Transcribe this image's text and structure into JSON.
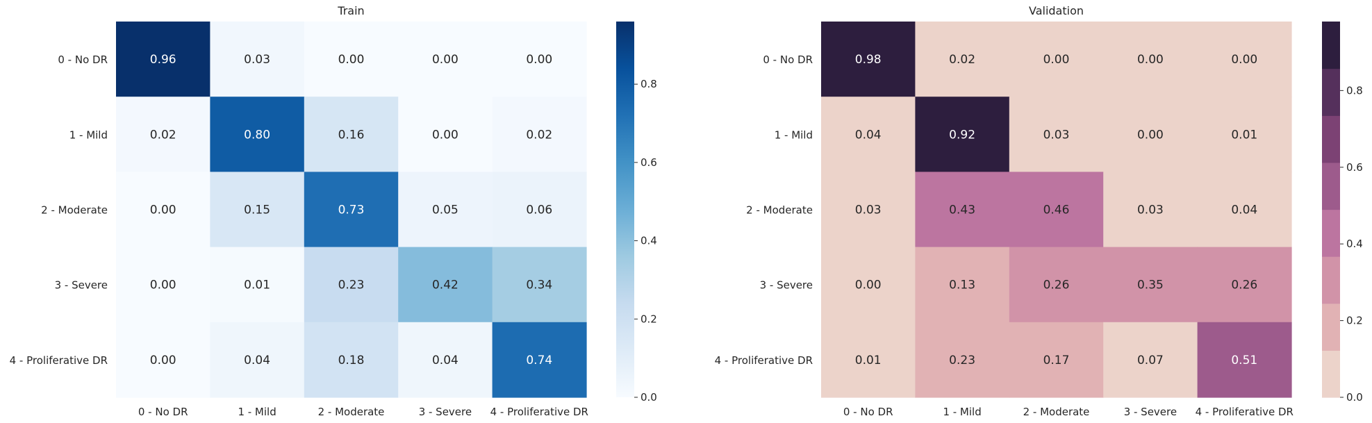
{
  "chart_data": [
    {
      "type": "heatmap",
      "title": "Train",
      "xlabel": "",
      "ylabel": "",
      "x_categories": [
        "0 - No DR",
        "1 - Mild",
        "2 - Moderate",
        "3 - Severe",
        "4 - Proliferative DR"
      ],
      "y_categories": [
        "0 - No DR",
        "1 - Mild",
        "2 - Moderate",
        "3 - Severe",
        "4 - Proliferative DR"
      ],
      "values": [
        [
          0.96,
          0.03,
          0.0,
          0.0,
          0.0
        ],
        [
          0.02,
          0.8,
          0.16,
          0.0,
          0.02
        ],
        [
          0.0,
          0.15,
          0.73,
          0.05,
          0.06
        ],
        [
          0.0,
          0.01,
          0.23,
          0.42,
          0.34
        ],
        [
          0.0,
          0.04,
          0.18,
          0.04,
          0.74
        ]
      ],
      "value_format": "0.00",
      "colormap": "Blues",
      "color_stops": [
        "#f7fbff",
        "#deebf7",
        "#c6dbef",
        "#9ecae1",
        "#6baed6",
        "#4292c6",
        "#2171b5",
        "#08519c",
        "#08306b"
      ],
      "colorbar": {
        "range": [
          0,
          0.96
        ],
        "ticks": [
          0.0,
          0.2,
          0.4,
          0.6,
          0.8
        ],
        "tick_labels": [
          "0.0",
          "0.2",
          "0.4",
          "0.6",
          "0.8"
        ],
        "discrete": false
      },
      "grid": false,
      "legend": "colorbar-right"
    },
    {
      "type": "heatmap",
      "title": "Validation",
      "xlabel": "",
      "ylabel": "",
      "x_categories": [
        "0 - No DR",
        "1 - Mild",
        "2 - Moderate",
        "3 - Severe",
        "4 - Proliferative DR"
      ],
      "y_categories": [
        "0 - No DR",
        "1 - Mild",
        "2 - Moderate",
        "3 - Severe",
        "4 - Proliferative DR"
      ],
      "values": [
        [
          0.98,
          0.02,
          0.0,
          0.0,
          0.0
        ],
        [
          0.04,
          0.92,
          0.03,
          0.0,
          0.01
        ],
        [
          0.03,
          0.43,
          0.46,
          0.03,
          0.04
        ],
        [
          0.0,
          0.13,
          0.26,
          0.35,
          0.26
        ],
        [
          0.01,
          0.23,
          0.17,
          0.07,
          0.51
        ]
      ],
      "value_format": "0.00",
      "colormap": "cubehelix-light (8 levels)",
      "color_stops": [
        "#ecd3ca",
        "#e1b2b4",
        "#d193a8",
        "#bc75a0",
        "#9d5b8c",
        "#7c4274",
        "#55305c",
        "#2d1e3e"
      ],
      "colorbar": {
        "range": [
          0,
          0.98
        ],
        "ticks": [
          0.0,
          0.2,
          0.4,
          0.6,
          0.8
        ],
        "tick_labels": [
          "0.0",
          "0.2",
          "0.4",
          "0.6",
          "0.8"
        ],
        "discrete": true,
        "levels": 8
      },
      "grid": false,
      "legend": "colorbar-right"
    }
  ]
}
